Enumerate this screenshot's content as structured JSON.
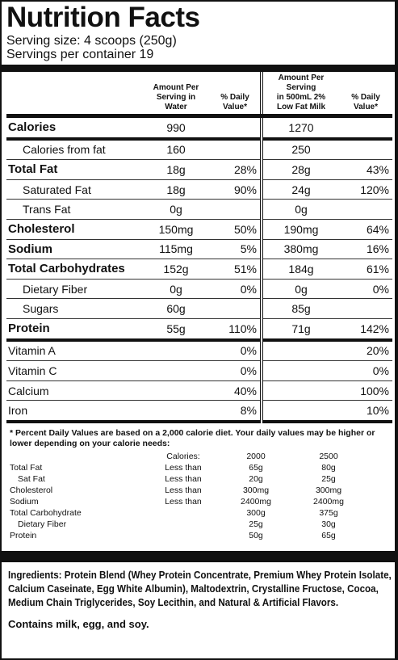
{
  "title": "Nutrition Facts",
  "serving_size": "Serving size: 4 scoops  (250g)",
  "servings": "Servings per container 19",
  "table": {
    "headers": [
      "Amount Per\nServing in\nWater",
      "% Daily\nValue*",
      "Amount Per Serving\nin 500mL 2%\nLow Fat Milk",
      "% Daily\nValue*"
    ],
    "rows": [
      [
        "Calories",
        "990",
        null,
        "1270",
        null
      ],
      [
        "Calories from fat",
        "160",
        null,
        "250",
        null
      ],
      [
        "Total Fat",
        "18g",
        "28%",
        "28g",
        "43%"
      ],
      [
        "Saturated Fat",
        "18g",
        "90%",
        "24g",
        "120%"
      ],
      [
        "Trans Fat",
        "0g",
        null,
        "0g",
        null
      ],
      [
        "Cholesterol",
        "150mg",
        "50%",
        "190mg",
        "64%"
      ],
      [
        "Sodium",
        "115mg",
        "5%",
        "380mg",
        "16%"
      ],
      [
        "Total Carbohydrates",
        "152g",
        "51%",
        "184g",
        "61%"
      ],
      [
        "Dietary Fiber",
        "0g",
        "0%",
        "0g",
        "0%"
      ],
      [
        "Sugars",
        "60g",
        null,
        "85g",
        null
      ],
      [
        "Protein",
        "55g",
        "110%",
        "71g",
        "142%"
      ],
      [
        "Vitamin A",
        null,
        "0%",
        null,
        "20%"
      ],
      [
        "Vitamin C",
        null,
        "0%",
        null,
        "0%"
      ],
      [
        "Calcium",
        null,
        "40%",
        null,
        "100%"
      ],
      [
        "Iron",
        null,
        "8%",
        null,
        "10%"
      ]
    ]
  },
  "footnote": "* Percent Daily Values are based on a 2,000 calorie diet. Your daily values may be higher or lower depending on your calorie needs:",
  "dv_table": {
    "headers": [
      "Calories:",
      "2000",
      "2500"
    ],
    "rows": [
      [
        "Total Fat",
        "Less than",
        "65g",
        "80g"
      ],
      [
        "Sat Fat",
        "Less than",
        "20g",
        "25g"
      ],
      [
        "Cholesterol",
        "Less than",
        "300mg",
        "300mg"
      ],
      [
        "Sodium",
        "Less than",
        "2400mg",
        "2400mg"
      ],
      [
        "Total Carbohydrate",
        null,
        "300g",
        "375g"
      ],
      [
        "Dietary Fiber",
        null,
        "25g",
        "30g"
      ],
      [
        "Protein",
        null,
        "50g",
        "65g"
      ]
    ]
  },
  "ingredients_label": "Ingredients:",
  "ingredients": "Protein Blend (Whey Protein Concentrate, Premium Whey Protein Isolate, Calcium Caseinate, Egg White Albumin), Maltodextrin, Crystalline Fructose, Cocoa, Medium Chain Triglycerides, Soy Lecithin, and Natural & Artificial Flavors.",
  "allergens": "Contains milk, egg, and soy."
}
